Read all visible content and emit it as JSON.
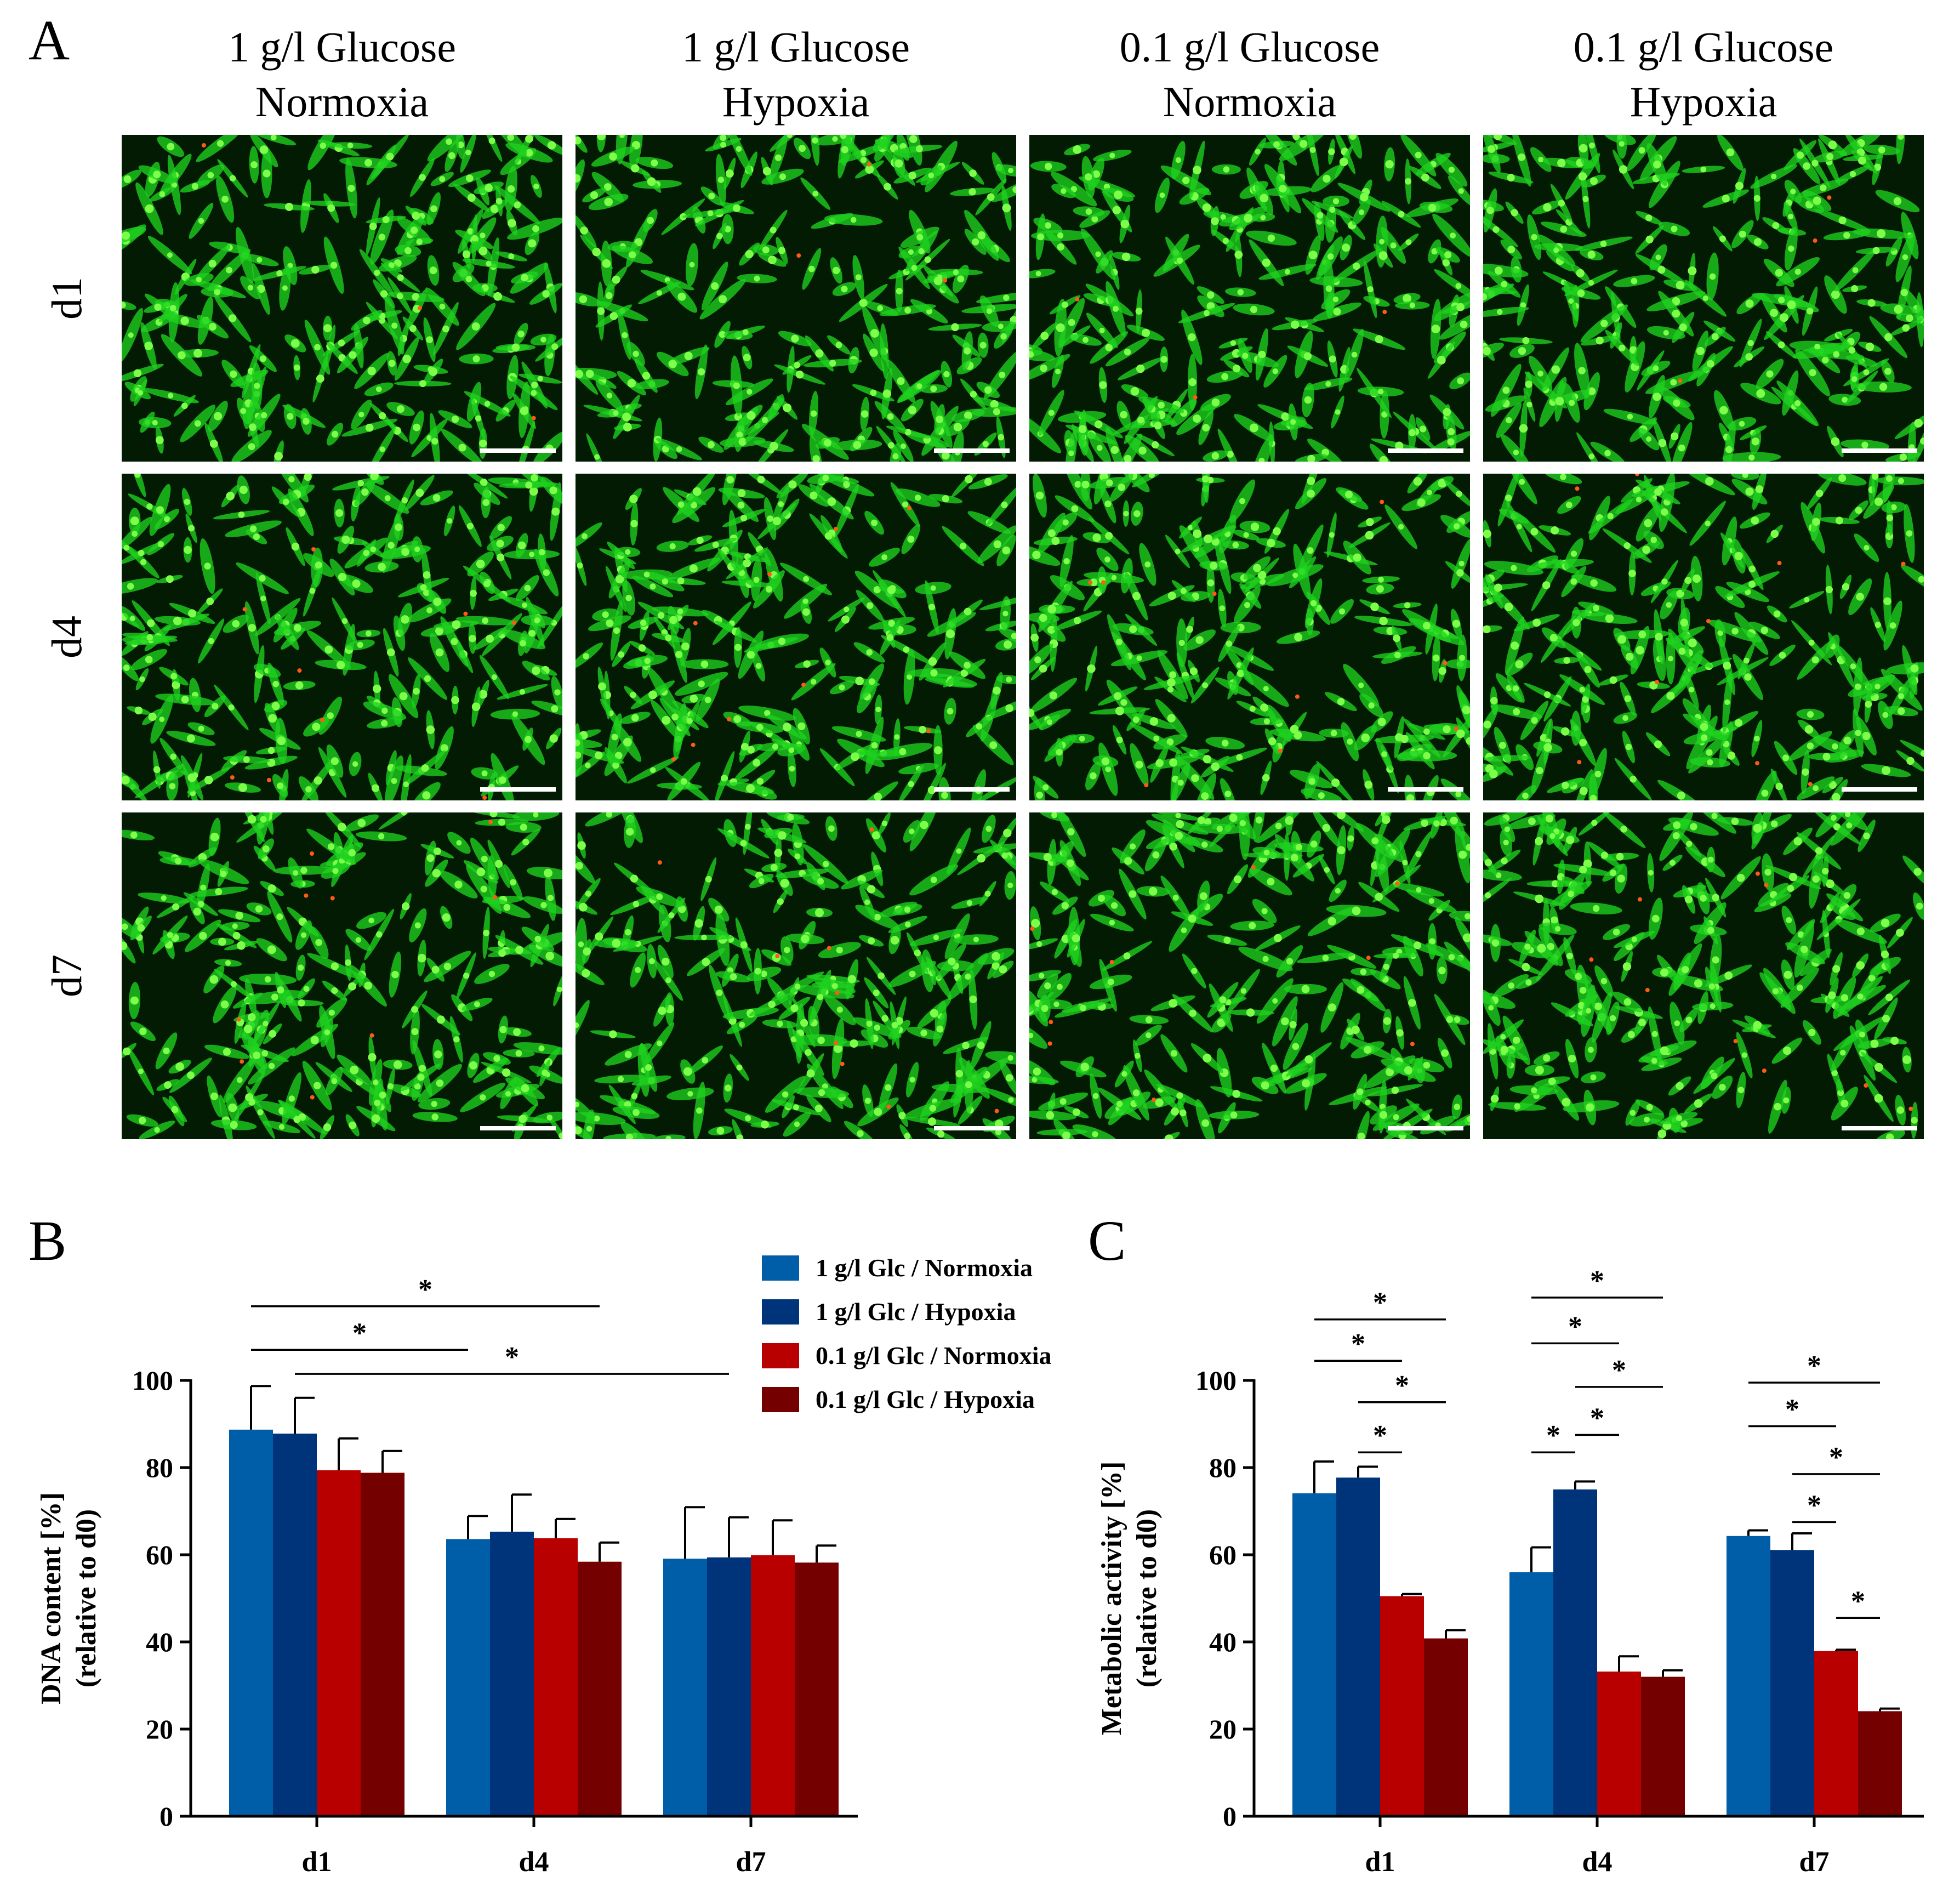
{
  "panel_a": {
    "letter": "A",
    "columns": [
      {
        "line1": "1 g/l Glucose",
        "line2": "Normoxia"
      },
      {
        "line1": "1 g/l Glucose",
        "line2": "Hypoxia"
      },
      {
        "line1": "0.1 g/l Glucose",
        "line2": "Normoxia"
      },
      {
        "line1": "0.1 g/l Glucose",
        "line2": "Hypoxia"
      }
    ],
    "rows": [
      "d1",
      "d4",
      "d7"
    ],
    "image_colors": {
      "background": "#031a03",
      "cell": "#1fd21f",
      "nucleus": "#7dff4a",
      "dead_cell": "#ff5a14",
      "scale_bar": "#ffffff"
    }
  },
  "legend": [
    {
      "label": "1 g/l Glc / Normoxia",
      "color": "#005ea8"
    },
    {
      "label": "1 g/l Glc / Hypoxia",
      "color": "#00347a"
    },
    {
      "label": "0.1 g/l Glc / Normoxia",
      "color": "#b80000"
    },
    {
      "label": "0.1 g/l Glc / Hypoxia",
      "color": "#740000"
    }
  ],
  "chart_data": [
    {
      "panel": "B",
      "type": "bar",
      "ylabel_line1": "DNA content [%]",
      "ylabel_line2": "(relative to d0)",
      "categories": [
        "d1",
        "d4",
        "d7"
      ],
      "yticks": [
        "0",
        "20",
        "40",
        "60",
        "80",
        "100"
      ],
      "ylim": [
        0,
        100
      ],
      "series": [
        {
          "name": "1 g/l Glc / Normoxia",
          "color": "#005ea8",
          "values": [
            88.7,
            63.6,
            59.1
          ],
          "errors": [
            10,
            5.3,
            11.8
          ]
        },
        {
          "name": "1 g/l Glc / Hypoxia",
          "color": "#00347a",
          "values": [
            87.8,
            65.3,
            59.4
          ],
          "errors": [
            8.2,
            8.5,
            9.2
          ]
        },
        {
          "name": "0.1 g/l Glc / Normoxia",
          "color": "#b80000",
          "values": [
            79.4,
            63.8,
            59.9
          ],
          "errors": [
            7.3,
            4.4,
            8
          ]
        },
        {
          "name": "0.1 g/l Glc / Hypoxia",
          "color": "#740000",
          "values": [
            78.8,
            58.4,
            58.2
          ],
          "errors": [
            5,
            4.4,
            3.9
          ]
        }
      ],
      "significance": [
        {
          "label": "*",
          "from": {
            "category": 0,
            "series": 0
          },
          "to": {
            "category": 1,
            "series": 3
          },
          "y": 117
        },
        {
          "label": "*",
          "from": {
            "category": 0,
            "series": 0
          },
          "to": {
            "category": 1,
            "series": 0
          },
          "y": 107
        },
        {
          "label": "*",
          "from": {
            "category": 0,
            "series": 1
          },
          "to": {
            "category": 2,
            "series": 1
          },
          "y": 101.5
        }
      ]
    },
    {
      "panel": "C",
      "type": "bar",
      "ylabel_line1": "Metabolic activity [%]",
      "ylabel_line2": "(relative to d0)",
      "categories": [
        "d1",
        "d4",
        "d7"
      ],
      "yticks": [
        "0",
        "20",
        "40",
        "60",
        "80",
        "100"
      ],
      "ylim": [
        0,
        100
      ],
      "series": [
        {
          "name": "1 g/l Glc / Normoxia",
          "color": "#005ea8",
          "values": [
            74.1,
            56,
            64.3
          ],
          "errors": [
            7.3,
            5.7,
            1.3
          ]
        },
        {
          "name": "1 g/l Glc / Hypoxia",
          "color": "#00347a",
          "values": [
            77.7,
            75,
            61.1
          ],
          "errors": [
            2.5,
            1.8,
            3.8
          ]
        },
        {
          "name": "0.1 g/l Glc / Normoxia",
          "color": "#b80000",
          "values": [
            50.5,
            33.2,
            37.9
          ],
          "errors": [
            0.5,
            3.5,
            0.3
          ]
        },
        {
          "name": "0.1 g/l Glc / Hypoxia",
          "color": "#740000",
          "values": [
            40.8,
            32,
            24.1
          ],
          "errors": [
            1.9,
            1.5,
            0.6
          ]
        }
      ],
      "significance": [
        {
          "label": "*",
          "from": {
            "category": 0,
            "series": 0
          },
          "to": {
            "category": 0,
            "series": 3
          },
          "y": 114
        },
        {
          "label": "*",
          "from": {
            "category": 0,
            "series": 0
          },
          "to": {
            "category": 0,
            "series": 2
          },
          "y": 104.5
        },
        {
          "label": "*",
          "from": {
            "category": 0,
            "series": 1
          },
          "to": {
            "category": 0,
            "series": 3
          },
          "y": 95
        },
        {
          "label": "*",
          "from": {
            "category": 0,
            "series": 1
          },
          "to": {
            "category": 0,
            "series": 2
          },
          "y": 83.5
        },
        {
          "label": "*",
          "from": {
            "category": 1,
            "series": 0
          },
          "to": {
            "category": 1,
            "series": 3
          },
          "y": 119
        },
        {
          "label": "*",
          "from": {
            "category": 1,
            "series": 0
          },
          "to": {
            "category": 1,
            "series": 2
          },
          "y": 108.5
        },
        {
          "label": "*",
          "from": {
            "category": 1,
            "series": 1
          },
          "to": {
            "category": 1,
            "series": 3
          },
          "y": 98.5
        },
        {
          "label": "*",
          "from": {
            "category": 1,
            "series": 1
          },
          "to": {
            "category": 1,
            "series": 2
          },
          "y": 87.5
        },
        {
          "label": "*",
          "from": {
            "category": 1,
            "series": 0
          },
          "to": {
            "category": 1,
            "series": 1
          },
          "y": 83.5
        },
        {
          "label": "*",
          "from": {
            "category": 2,
            "series": 0
          },
          "to": {
            "category": 2,
            "series": 3
          },
          "y": 99.5
        },
        {
          "label": "*",
          "from": {
            "category": 2,
            "series": 0
          },
          "to": {
            "category": 2,
            "series": 2
          },
          "y": 89.5
        },
        {
          "label": "*",
          "from": {
            "category": 2,
            "series": 1
          },
          "to": {
            "category": 2,
            "series": 3
          },
          "y": 78.5
        },
        {
          "label": "*",
          "from": {
            "category": 2,
            "series": 1
          },
          "to": {
            "category": 2,
            "series": 2
          },
          "y": 67.5
        },
        {
          "label": "*",
          "from": {
            "category": 2,
            "series": 2
          },
          "to": {
            "category": 2,
            "series": 3
          },
          "y": 45.5
        }
      ]
    }
  ]
}
